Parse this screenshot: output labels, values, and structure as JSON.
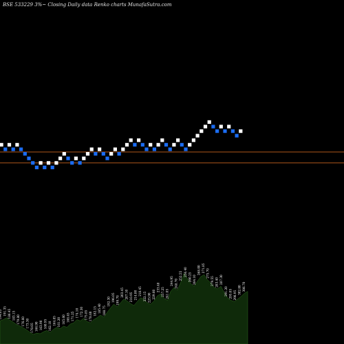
{
  "header": {
    "title": "BSE 533229 3%~  Closing Daily data  Renko  charts MunafaSutra.com"
  },
  "chart_data": {
    "type": "renko",
    "title": "BSE 533229 3%~  Closing Daily data  Renko  charts MunafaSutra.com",
    "colors": {
      "up_brick": "#ffffff",
      "down_brick": "#1b6cf2",
      "reference_line": "#c8641e",
      "volume_fill": "#0f2a0a",
      "volume_stroke": "#2f6a1e"
    },
    "bricks": [
      {
        "direction": "up",
        "level": 2
      },
      {
        "direction": "down",
        "level": 1
      },
      {
        "direction": "up",
        "level": 2
      },
      {
        "direction": "down",
        "level": 1
      },
      {
        "direction": "up",
        "level": 2
      },
      {
        "direction": "down",
        "level": 1
      },
      {
        "direction": "down",
        "level": 0
      },
      {
        "direction": "down",
        "level": -1
      },
      {
        "direction": "down",
        "level": -2
      },
      {
        "direction": "down",
        "level": -3
      },
      {
        "direction": "up",
        "level": -2
      },
      {
        "direction": "down",
        "level": -3
      },
      {
        "direction": "up",
        "level": -2
      },
      {
        "direction": "down",
        "level": -3
      },
      {
        "direction": "up",
        "level": -2
      },
      {
        "direction": "up",
        "level": -1
      },
      {
        "direction": "up",
        "level": 0
      },
      {
        "direction": "down",
        "level": -1
      },
      {
        "direction": "down",
        "level": -2
      },
      {
        "direction": "up",
        "level": -1
      },
      {
        "direction": "down",
        "level": -2
      },
      {
        "direction": "up",
        "level": -1
      },
      {
        "direction": "up",
        "level": 0
      },
      {
        "direction": "up",
        "level": 1
      },
      {
        "direction": "down",
        "level": 0
      },
      {
        "direction": "up",
        "level": 1
      },
      {
        "direction": "down",
        "level": 0
      },
      {
        "direction": "down",
        "level": -1
      },
      {
        "direction": "up",
        "level": 0
      },
      {
        "direction": "up",
        "level": 1
      },
      {
        "direction": "down",
        "level": 0
      },
      {
        "direction": "up",
        "level": 1
      },
      {
        "direction": "up",
        "level": 2
      },
      {
        "direction": "up",
        "level": 3
      },
      {
        "direction": "down",
        "level": 2
      },
      {
        "direction": "up",
        "level": 3
      },
      {
        "direction": "down",
        "level": 2
      },
      {
        "direction": "down",
        "level": 1
      },
      {
        "direction": "up",
        "level": 2
      },
      {
        "direction": "down",
        "level": 1
      },
      {
        "direction": "up",
        "level": 2
      },
      {
        "direction": "up",
        "level": 3
      },
      {
        "direction": "down",
        "level": 2
      },
      {
        "direction": "down",
        "level": 1
      },
      {
        "direction": "up",
        "level": 2
      },
      {
        "direction": "up",
        "level": 3
      },
      {
        "direction": "down",
        "level": 2
      },
      {
        "direction": "down",
        "level": 1
      },
      {
        "direction": "up",
        "level": 2
      },
      {
        "direction": "up",
        "level": 3
      },
      {
        "direction": "up",
        "level": 4
      },
      {
        "direction": "up",
        "level": 5
      },
      {
        "direction": "up",
        "level": 6
      },
      {
        "direction": "up",
        "level": 7
      },
      {
        "direction": "down",
        "level": 6
      },
      {
        "direction": "down",
        "level": 5
      },
      {
        "direction": "up",
        "level": 6
      },
      {
        "direction": "down",
        "level": 5
      },
      {
        "direction": "up",
        "level": 6
      },
      {
        "direction": "down",
        "level": 5
      },
      {
        "direction": "down",
        "level": 4
      },
      {
        "direction": "up",
        "level": 5
      }
    ],
    "reference_levels": [
      0.4,
      -2.0
    ],
    "volume": [
      36,
      38,
      41,
      37,
      34,
      30,
      28,
      25,
      22,
      18,
      15,
      17,
      16,
      19,
      21,
      18,
      23,
      26,
      24,
      28,
      26,
      31,
      33,
      38,
      36,
      40,
      35,
      33,
      38,
      41,
      45,
      42,
      49,
      56,
      62,
      58,
      64,
      70,
      67,
      63,
      60,
      66,
      72,
      70,
      64,
      62,
      67,
      75,
      78,
      71,
      68,
      82,
      88,
      84,
      96,
      110,
      102,
      94,
      90,
      98,
      105,
      108,
      100,
      95,
      88,
      86,
      90,
      80,
      72,
      68,
      66,
      70,
      74,
      79,
      82
    ],
    "volume_max": 120,
    "price_labels": [
      "194.05",
      "191.35",
      "186.45",
      "183.15",
      "179.80",
      "176.60",
      "173.30",
      "170.05",
      "166.90",
      "163.90",
      "160.95",
      "162.10",
      "164.85",
      "161.20",
      "165.60",
      "168.45",
      "171.25",
      "174.10",
      "172.30",
      "175.85",
      "178.60",
      "182.15",
      "185.40",
      "188.75",
      "192.30",
      "196.05",
      "199.70",
      "203.45",
      "207.10",
      "210.95",
      "214.80",
      "218.45",
      "222.15",
      "225.90",
      "229.60",
      "233.40",
      "237.25",
      "241.05",
      "244.95",
      "248.70",
      "252.55",
      "256.40",
      "260.25",
      "264.10",
      "268.00",
      "271.85",
      "275.70",
      "279.55",
      "283.40",
      "287.30",
      "291.20",
      "295.05",
      "298.95",
      "302.80",
      "306.70"
    ],
    "grid": false,
    "legend": "none"
  }
}
